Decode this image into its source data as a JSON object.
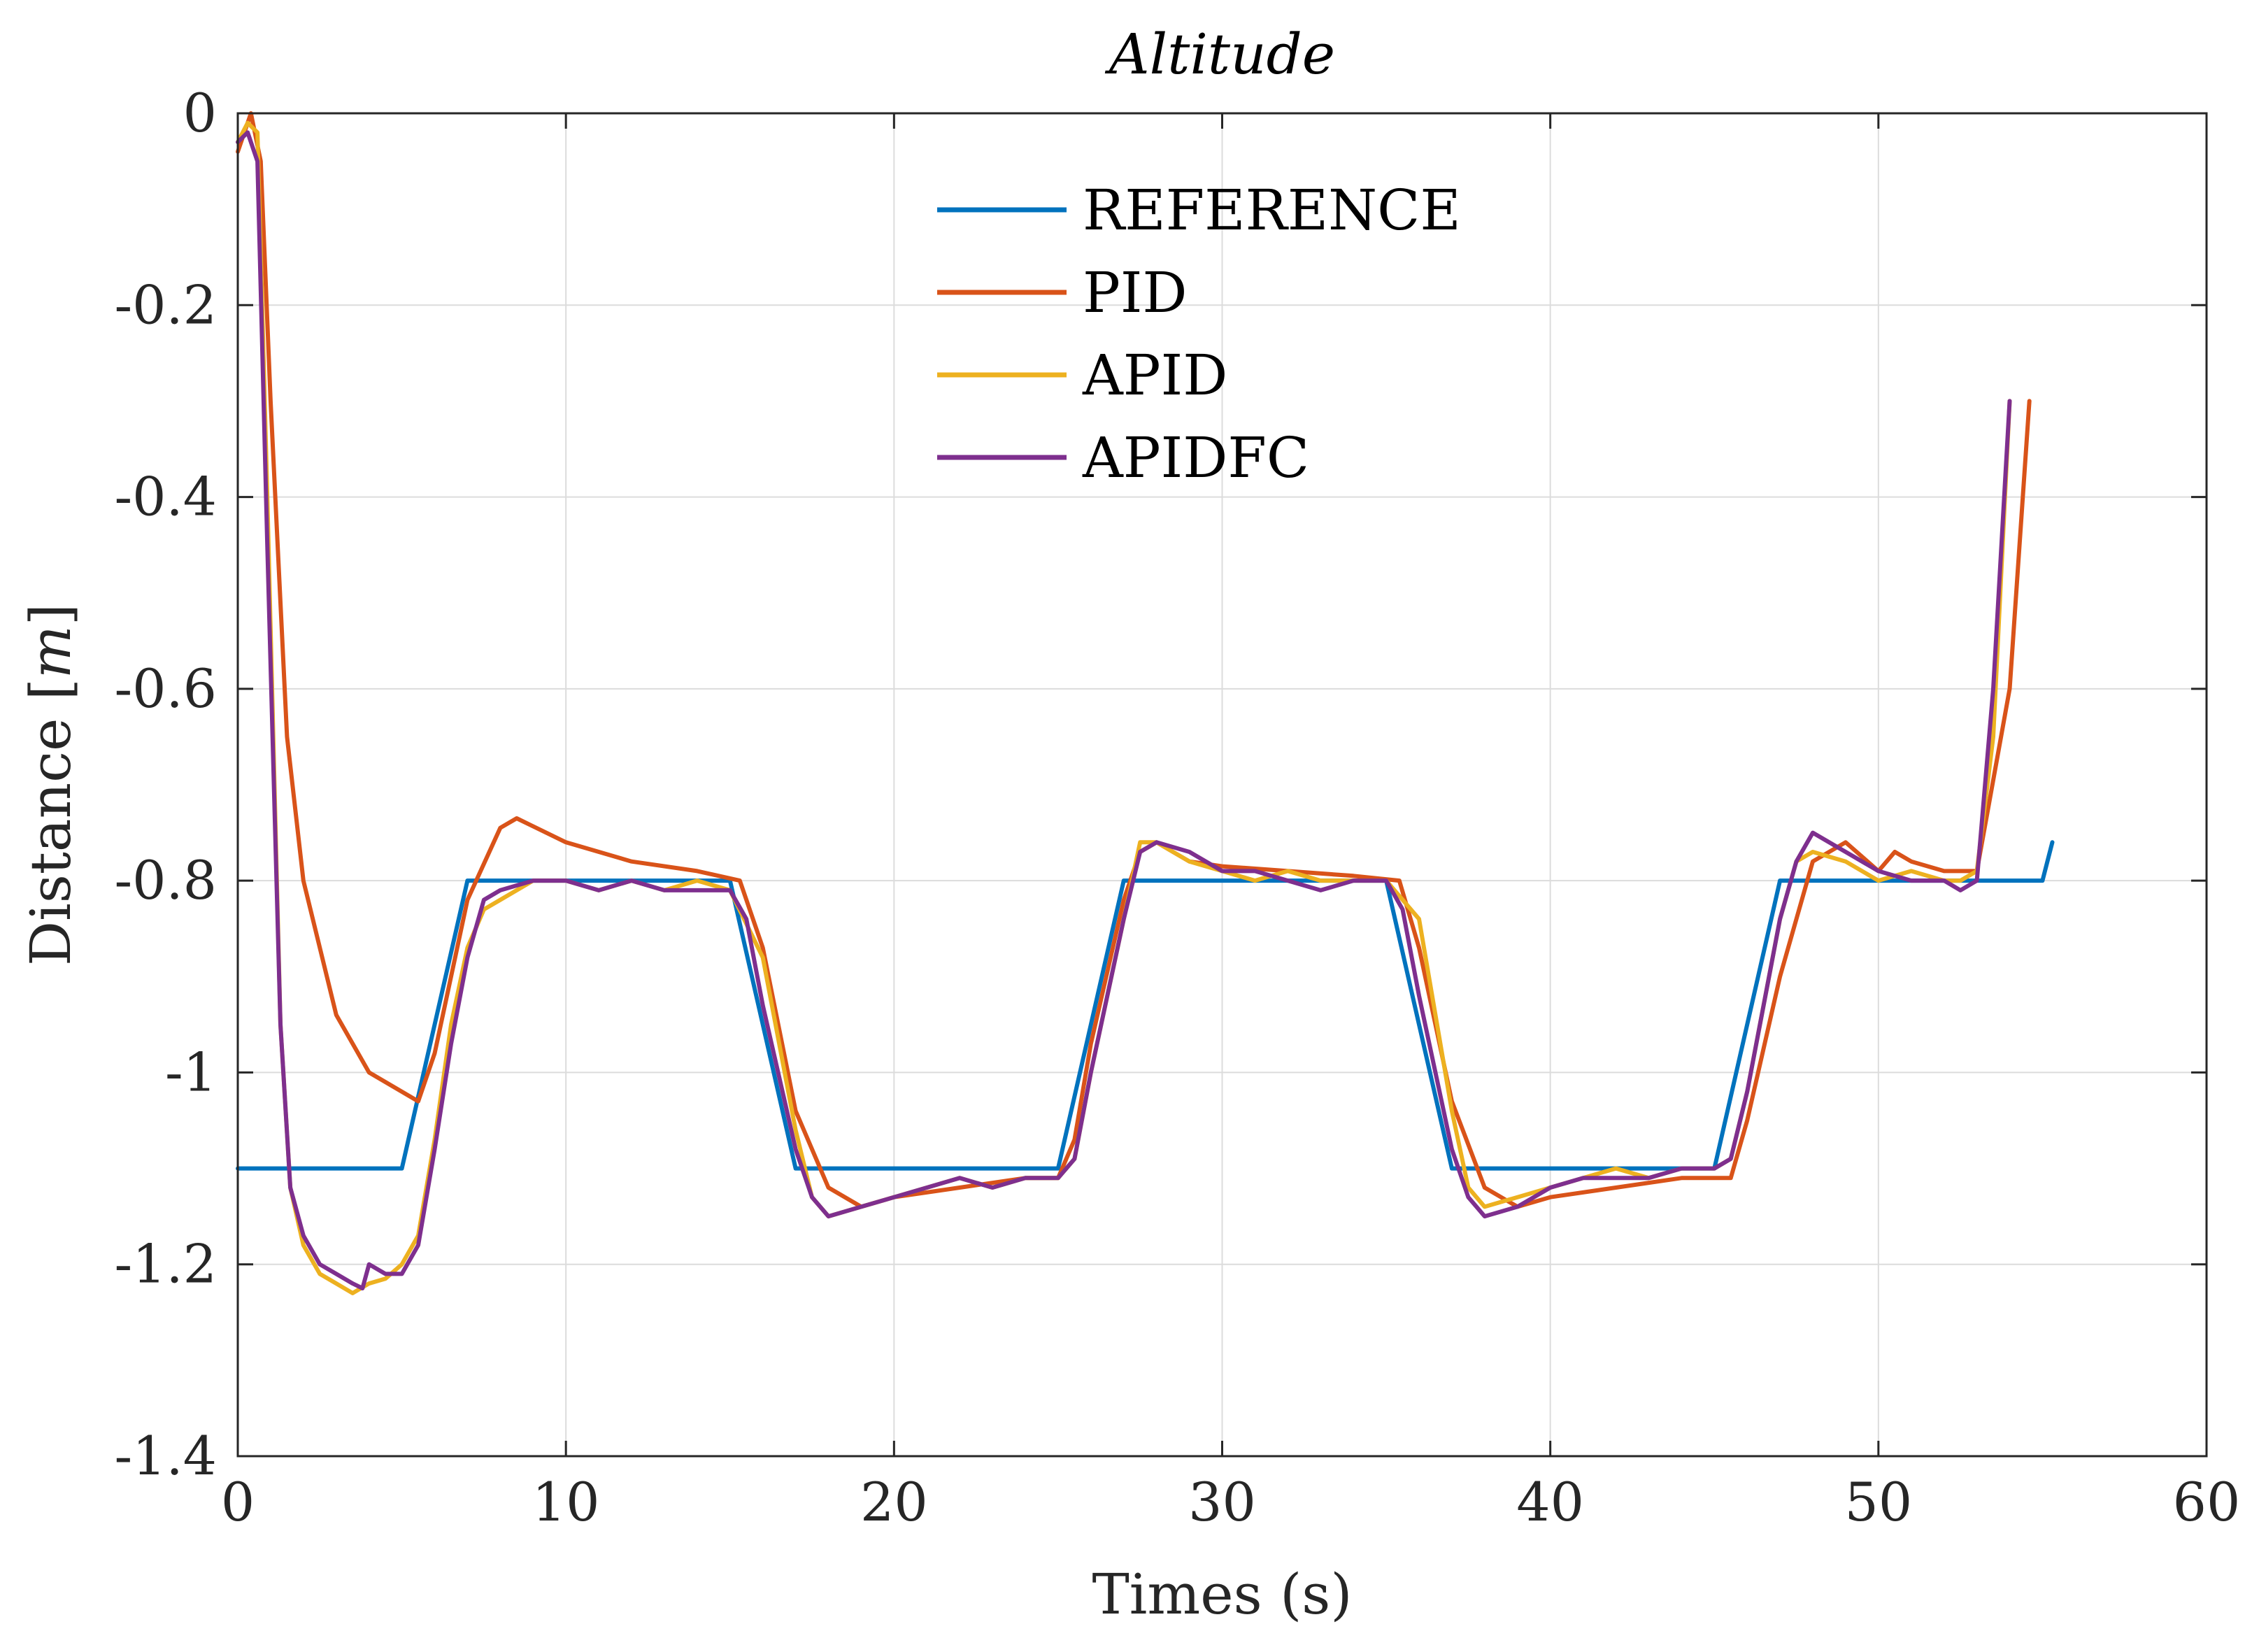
{
  "chart_data": {
    "type": "line",
    "title": "Altitude",
    "xlabel": "Times (s)",
    "ylabel_prefix": "Distance [",
    "ylabel_unit": "m",
    "ylabel_suffix": "]",
    "xlim": [
      0,
      60
    ],
    "ylim": [
      -1.4,
      0
    ],
    "xticks": [
      0,
      10,
      20,
      30,
      40,
      50,
      60
    ],
    "xtick_labels": [
      "0",
      "10",
      "20",
      "30",
      "40",
      "50",
      "60"
    ],
    "yticks": [
      0,
      -0.2,
      -0.4,
      -0.6,
      -0.8,
      -1,
      -1.2,
      -1.4
    ],
    "ytick_labels": [
      "0",
      "-0.2",
      "-0.4",
      "-0.6",
      "-0.8",
      "-1",
      "-1.2",
      "-1.4"
    ],
    "grid": true,
    "legend_position": "top-center",
    "series": [
      {
        "name": "REFERENCE",
        "color": "#0072BD",
        "x": [
          0,
          5,
          7,
          15,
          17,
          25,
          27,
          35,
          37,
          45,
          47,
          55,
          55.3
        ],
        "y": [
          -1.1,
          -1.1,
          -0.8,
          -0.8,
          -1.1,
          -1.1,
          -0.8,
          -0.8,
          -1.1,
          -1.1,
          -0.8,
          -0.8,
          -0.76
        ]
      },
      {
        "name": "PID",
        "color": "#D95319",
        "x": [
          0,
          0.4,
          0.7,
          1,
          1.5,
          2,
          3,
          4,
          5,
          5.5,
          6,
          7,
          8,
          8.5,
          10,
          12,
          14,
          15.3,
          16,
          17,
          18,
          19,
          20,
          22,
          24,
          25,
          25.5,
          26,
          27,
          27.5,
          28,
          29,
          30,
          32,
          34,
          35.4,
          36,
          37,
          38,
          39,
          40,
          42,
          44,
          45.5,
          46,
          47,
          48,
          49,
          50,
          50.5,
          51,
          52,
          53,
          54,
          54.6
        ],
        "y": [
          -0.04,
          0,
          -0.05,
          -0.3,
          -0.65,
          -0.8,
          -0.94,
          -1.0,
          -1.02,
          -1.03,
          -0.98,
          -0.82,
          -0.745,
          -0.735,
          -0.76,
          -0.78,
          -0.79,
          -0.8,
          -0.87,
          -1.04,
          -1.12,
          -1.14,
          -1.13,
          -1.12,
          -1.11,
          -1.11,
          -1.07,
          -0.97,
          -0.82,
          -0.77,
          -0.76,
          -0.78,
          -0.785,
          -0.79,
          -0.795,
          -0.8,
          -0.87,
          -1.03,
          -1.12,
          -1.14,
          -1.13,
          -1.12,
          -1.11,
          -1.11,
          -1.05,
          -0.9,
          -0.78,
          -0.76,
          -0.79,
          -0.77,
          -0.78,
          -0.79,
          -0.79,
          -0.6,
          -0.3
        ]
      },
      {
        "name": "APID",
        "color": "#EDB120",
        "x": [
          0,
          0.3,
          0.6,
          0.9,
          1.3,
          1.6,
          2,
          2.5,
          3,
          3.5,
          4,
          4.5,
          5,
          5.5,
          6,
          6.5,
          7,
          7.5,
          8,
          9,
          10,
          11,
          12,
          13,
          14,
          15,
          16,
          17,
          17.5,
          18,
          19,
          20,
          21,
          22,
          23,
          24,
          25,
          25.5,
          26,
          27,
          27.5,
          28,
          29,
          30,
          31,
          32,
          33,
          34,
          35,
          36,
          37,
          37.5,
          38,
          39,
          40,
          41,
          42,
          43,
          44,
          45,
          45.5,
          46,
          47,
          47.5,
          48,
          49,
          50,
          51,
          52,
          52.5,
          53,
          53.5,
          54
        ],
        "y": [
          -0.03,
          -0.01,
          -0.02,
          -0.4,
          -0.95,
          -1.12,
          -1.18,
          -1.21,
          -1.22,
          -1.23,
          -1.22,
          -1.215,
          -1.2,
          -1.17,
          -1.07,
          -0.95,
          -0.87,
          -0.83,
          -0.82,
          -0.8,
          -0.8,
          -0.81,
          -0.8,
          -0.81,
          -0.8,
          -0.81,
          -0.88,
          -1.06,
          -1.13,
          -1.15,
          -1.14,
          -1.13,
          -1.12,
          -1.11,
          -1.12,
          -1.11,
          -1.11,
          -1.09,
          -1.0,
          -0.84,
          -0.76,
          -0.76,
          -0.78,
          -0.79,
          -0.8,
          -0.79,
          -0.8,
          -0.8,
          -0.8,
          -0.84,
          -1.04,
          -1.12,
          -1.14,
          -1.13,
          -1.12,
          -1.11,
          -1.1,
          -1.11,
          -1.1,
          -1.1,
          -1.09,
          -1.02,
          -0.84,
          -0.78,
          -0.77,
          -0.78,
          -0.8,
          -0.79,
          -0.8,
          -0.8,
          -0.79,
          -0.65,
          -0.3
        ]
      },
      {
        "name": "APIDFC",
        "color": "#7E2F8E",
        "x": [
          0,
          0.3,
          0.6,
          0.9,
          1.3,
          1.6,
          2,
          2.5,
          3,
          3.5,
          3.8,
          4,
          4.5,
          5,
          5.5,
          6,
          6.5,
          7,
          7.5,
          8,
          9,
          10,
          11,
          12,
          13,
          14,
          15,
          15.5,
          16,
          17,
          17.5,
          18,
          19,
          20,
          21,
          22,
          23,
          24,
          25,
          25.5,
          26,
          27,
          27.5,
          28,
          29,
          30,
          31,
          32,
          33,
          34,
          35,
          35.5,
          36,
          37,
          37.5,
          38,
          39,
          40,
          41,
          42,
          43,
          44,
          45,
          45.5,
          46,
          47,
          47.5,
          48,
          49,
          50,
          51,
          52,
          52.5,
          53,
          53.5,
          54
        ],
        "y": [
          -0.03,
          -0.02,
          -0.05,
          -0.45,
          -0.95,
          -1.12,
          -1.17,
          -1.2,
          -1.21,
          -1.22,
          -1.225,
          -1.2,
          -1.21,
          -1.21,
          -1.18,
          -1.08,
          -0.97,
          -0.88,
          -0.82,
          -0.81,
          -0.8,
          -0.8,
          -0.81,
          -0.8,
          -0.81,
          -0.81,
          -0.81,
          -0.84,
          -0.93,
          -1.08,
          -1.13,
          -1.15,
          -1.14,
          -1.13,
          -1.12,
          -1.11,
          -1.12,
          -1.11,
          -1.11,
          -1.09,
          -1.0,
          -0.84,
          -0.77,
          -0.76,
          -0.77,
          -0.79,
          -0.79,
          -0.8,
          -0.81,
          -0.8,
          -0.8,
          -0.83,
          -0.92,
          -1.08,
          -1.13,
          -1.15,
          -1.14,
          -1.12,
          -1.11,
          -1.11,
          -1.11,
          -1.1,
          -1.1,
          -1.09,
          -1.02,
          -0.84,
          -0.78,
          -0.75,
          -0.77,
          -0.79,
          -0.8,
          -0.8,
          -0.81,
          -0.8,
          -0.6,
          -0.3
        ]
      }
    ]
  }
}
